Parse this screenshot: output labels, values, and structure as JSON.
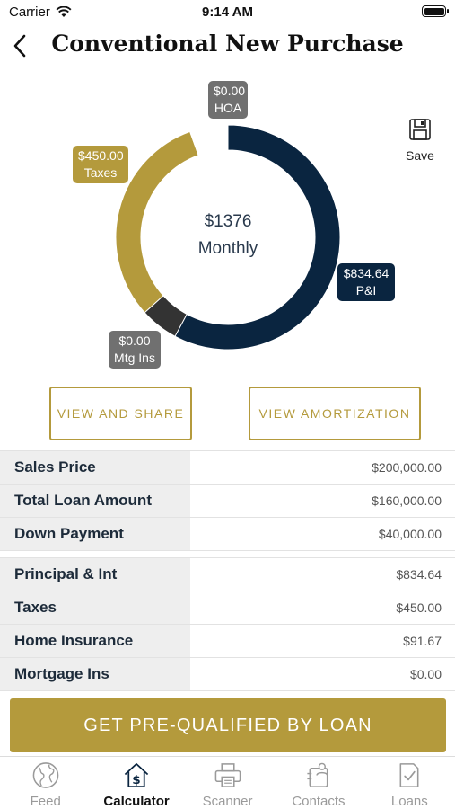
{
  "status_bar": {
    "carrier": "Carrier",
    "time": "9:14 AM"
  },
  "header": {
    "title": "Conventional New Purchase"
  },
  "save": {
    "label": "Save"
  },
  "chart_data": {
    "type": "pie",
    "center_amount": "$1376",
    "center_label": "Monthly",
    "segments": [
      {
        "name": "P&I",
        "value": 834.64,
        "label_value": "$834.64",
        "color": "#0a2540"
      },
      {
        "name": "Mtg Ins",
        "value": 0.0,
        "label_value": "$0.00",
        "color": "#333333"
      },
      {
        "name": "Taxes",
        "value": 450.0,
        "label_value": "$450.00",
        "color": "#b49a3c"
      },
      {
        "name": "HOA",
        "value": 0.0,
        "label_value": "$0.00",
        "color": "#707070"
      }
    ]
  },
  "buttons": {
    "view_share": "VIEW AND SHARE",
    "view_amortization": "VIEW AMORTIZATION"
  },
  "loan_summary": [
    {
      "label": "Sales Price",
      "value": "$200,000.00"
    },
    {
      "label": "Total Loan Amount",
      "value": "$160,000.00"
    },
    {
      "label": "Down Payment",
      "value": "$40,000.00"
    }
  ],
  "payment_breakdown": [
    {
      "label": "Principal & Int",
      "value": "$834.64"
    },
    {
      "label": "Taxes",
      "value": "$450.00"
    },
    {
      "label": "Home Insurance",
      "value": "$91.67"
    },
    {
      "label": "Mortgage Ins",
      "value": "$0.00"
    }
  ],
  "cta": {
    "label": "GET PRE-QUALIFIED BY LOAN"
  },
  "tabbar": [
    {
      "label": "Feed",
      "icon": "globe-icon",
      "active": false
    },
    {
      "label": "Calculator",
      "icon": "house-dollar-icon",
      "active": true
    },
    {
      "label": "Scanner",
      "icon": "printer-icon",
      "active": false
    },
    {
      "label": "Contacts",
      "icon": "contacts-icon",
      "active": false
    },
    {
      "label": "Loans",
      "icon": "document-check-icon",
      "active": false
    }
  ],
  "colors": {
    "accent_gold": "#b49a3c",
    "navy": "#0a2540",
    "gray": "#707070"
  }
}
